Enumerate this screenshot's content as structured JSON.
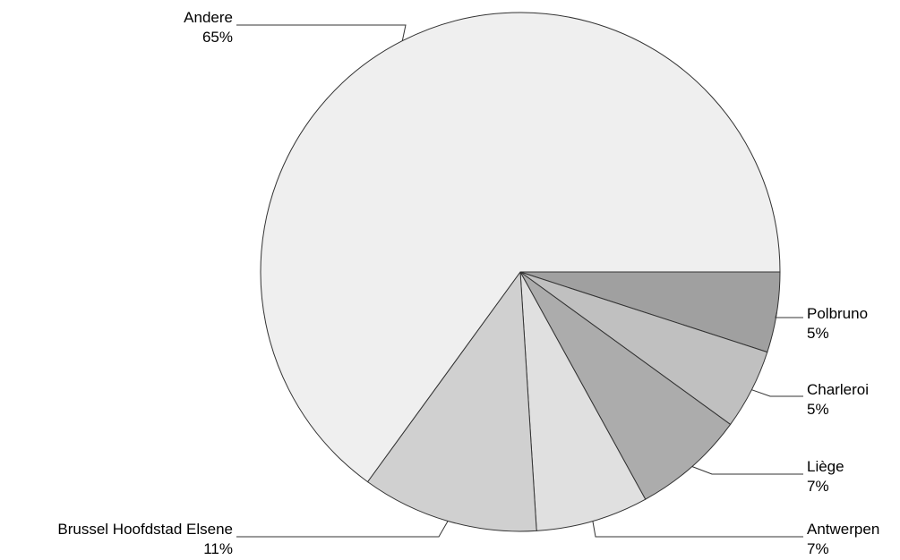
{
  "chart_data": {
    "type": "pie",
    "title": "",
    "slices": [
      {
        "label": "Polbruno",
        "value": 5,
        "value_label": "5%",
        "color": "#a0a0a0"
      },
      {
        "label": "Charleroi",
        "value": 5,
        "value_label": "5%",
        "color": "#c0c0c0"
      },
      {
        "label": "Liège",
        "value": 7,
        "value_label": "7%",
        "color": "#acacac"
      },
      {
        "label": "Antwerpen",
        "value": 7,
        "value_label": "7%",
        "color": "#e0e0e0"
      },
      {
        "label": "Brussel Hoofdstad Elsene",
        "value": 11,
        "value_label": "11%",
        "color": "#d0d0d0"
      },
      {
        "label": "Andere",
        "value": 65,
        "value_label": "65%",
        "color": "#efefef"
      }
    ],
    "start_angle": "3 o'clock",
    "direction": "clockwise",
    "legend": "none",
    "edge_color": "#333333"
  }
}
